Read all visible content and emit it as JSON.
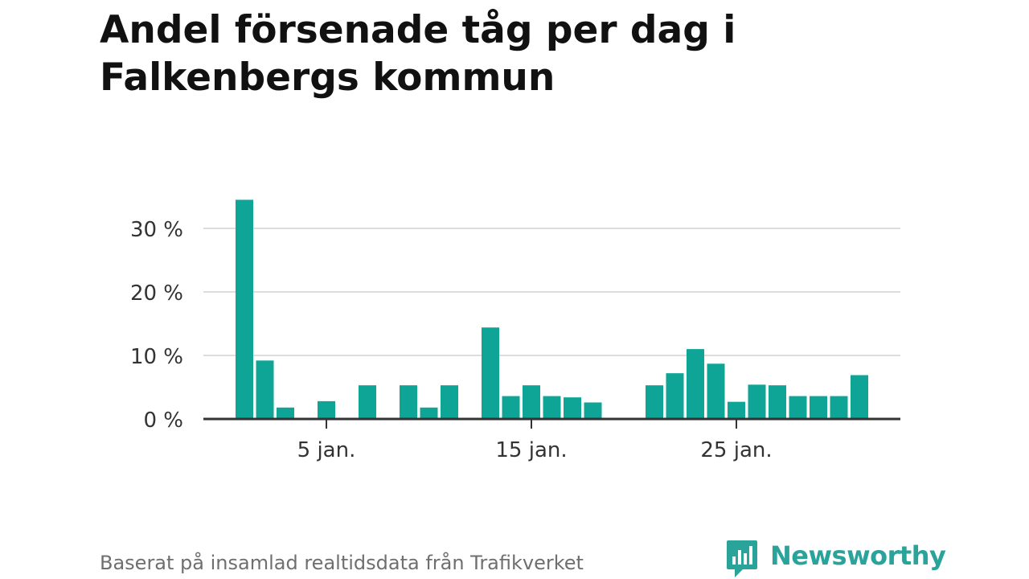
{
  "title": "Andel försenade tåg per dag i Falkenbergs kommun",
  "footer": "Baserat på insamlad realtidsdata från Trafikverket",
  "brand": "Newsworthy",
  "colors": {
    "bar": "#0fa596",
    "grid": "#dddddd",
    "axis": "#333333",
    "text": "#333333"
  },
  "chart_data": {
    "type": "bar",
    "x": [
      1,
      2,
      3,
      4,
      5,
      6,
      7,
      8,
      9,
      10,
      11,
      12,
      13,
      14,
      15,
      16,
      17,
      18,
      19,
      20,
      21,
      22,
      23,
      24,
      25,
      26,
      27,
      28,
      29,
      30,
      31
    ],
    "values": [
      34.5,
      9.2,
      1.8,
      0,
      2.8,
      0,
      5.3,
      0,
      5.3,
      1.8,
      5.3,
      0,
      14.4,
      3.6,
      5.3,
      3.6,
      3.4,
      2.6,
      0,
      0,
      5.3,
      7.2,
      11,
      8.7,
      2.7,
      5.4,
      5.3,
      3.6,
      3.6,
      3.6,
      6.9
    ],
    "xticks": [
      {
        "x": 5,
        "label": "5 jan."
      },
      {
        "x": 15,
        "label": "15 jan."
      },
      {
        "x": 25,
        "label": "25 jan."
      }
    ],
    "yticks": [
      {
        "y": 0,
        "label": "0 %"
      },
      {
        "y": 10,
        "label": "10 %"
      },
      {
        "y": 20,
        "label": "20 %"
      },
      {
        "y": 30,
        "label": "30 %"
      }
    ],
    "ylim": [
      0,
      35
    ],
    "grid": true
  }
}
